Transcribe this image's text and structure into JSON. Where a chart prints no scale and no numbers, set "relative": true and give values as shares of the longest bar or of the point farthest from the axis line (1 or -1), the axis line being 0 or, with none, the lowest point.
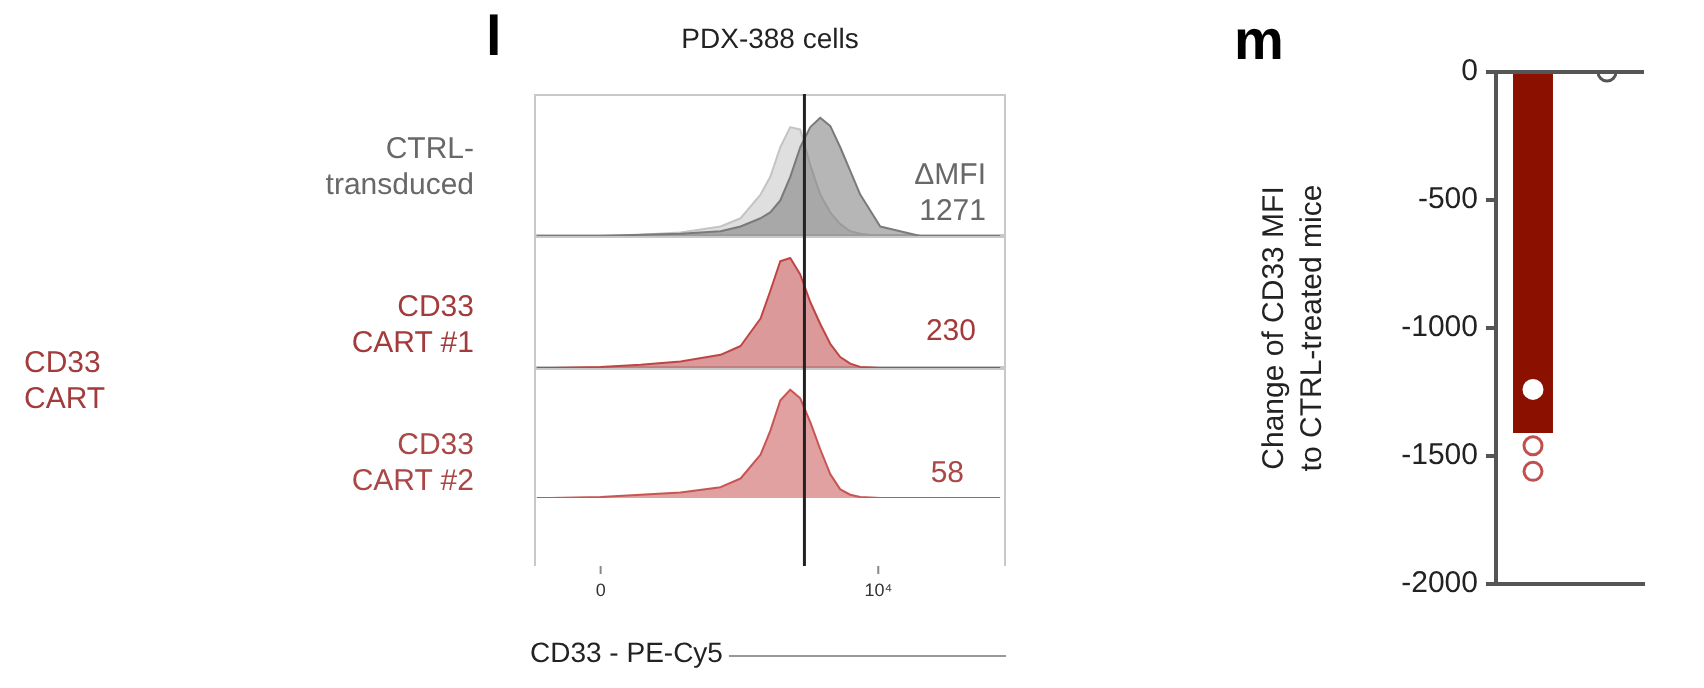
{
  "chart_data": [
    {
      "type": "area",
      "relative": true,
      "title": "PDX-388 cells",
      "ylabel": "CTRL-\ntransduced",
      "annotations": [
        "l",
        "ΔMFI\n1271"
      ],
      "x": [
        -2300,
        -1800,
        0,
        1440,
        2880,
        4320,
        5040,
        5760,
        6110,
        6470,
        6830,
        7190,
        7550,
        7910,
        8270,
        8630,
        8990,
        9350,
        10070,
        11510,
        14390
      ],
      "series": [
        {
          "color": "#c4c4c4",
          "values": [
            0,
            0,
            0,
            0.01,
            0.03,
            0.08,
            0.15,
            0.35,
            0.5,
            0.75,
            0.92,
            0.9,
            0.6,
            0.35,
            0.2,
            0.1,
            0.04,
            0.02,
            0,
            0,
            0
          ]
        },
        {
          "color": "#7a7a7a",
          "values": [
            0,
            0,
            0,
            0.01,
            0.02,
            0.04,
            0.08,
            0.15,
            0.2,
            0.3,
            0.5,
            0.75,
            0.92,
            1,
            0.93,
            0.75,
            0.55,
            0.35,
            0.08,
            0,
            0
          ]
        }
      ],
      "xlim": [
        -2400,
        14600
      ],
      "ref_lines": [
        {
          "axis": "x",
          "value": 7340
        }
      ],
      "tick_labels": false,
      "legend": false
    },
    {
      "type": "area",
      "relative": true,
      "ylabel": "CD33\nCART #1",
      "annotations": [
        "CD33\nCART",
        "230"
      ],
      "x": [
        -2300,
        -1800,
        0,
        1440,
        2880,
        4320,
        5040,
        5760,
        6110,
        6470,
        6830,
        7190,
        7550,
        7910,
        8270,
        8630,
        8990,
        9350,
        10070,
        11510,
        14390
      ],
      "series": [
        {
          "color": "#bf4545",
          "values": [
            0,
            0,
            0.01,
            0.03,
            0.06,
            0.12,
            0.2,
            0.45,
            0.7,
            0.97,
            1,
            0.85,
            0.6,
            0.4,
            0.22,
            0.1,
            0.04,
            0.01,
            0,
            0,
            0
          ]
        }
      ],
      "xlim": [
        -2400,
        14600
      ],
      "ref_lines": [
        {
          "axis": "x",
          "value": 7340
        }
      ],
      "tick_labels": false,
      "legend": false
    },
    {
      "type": "area",
      "relative": true,
      "ylabel": "CD33\nCART #2",
      "xlabel": "CD33 - PE-Cy5",
      "annotations": [
        "58"
      ],
      "x": [
        -2300,
        -1800,
        0,
        1440,
        2880,
        4320,
        5040,
        5760,
        6110,
        6470,
        6830,
        7190,
        7550,
        7910,
        8270,
        8630,
        8990,
        9350,
        10070,
        11510,
        14390
      ],
      "series": [
        {
          "color": "#c85454",
          "values": [
            0,
            0,
            0.01,
            0.03,
            0.05,
            0.1,
            0.18,
            0.4,
            0.62,
            0.9,
            1,
            0.92,
            0.7,
            0.45,
            0.22,
            0.08,
            0.03,
            0.01,
            0,
            0,
            0
          ]
        }
      ],
      "xlim": [
        -2400,
        14600
      ],
      "xticks": [
        0,
        {
          "value": 10000,
          "label": "10⁴"
        }
      ],
      "ref_lines": [
        {
          "axis": "x",
          "value": 7340
        }
      ],
      "tick_labels": "x",
      "legend": false
    },
    {
      "type": "bar",
      "categories": [
        null,
        null
      ],
      "ylabel": "Change of CD33 MFI\nto CTRL-treated mice",
      "annotations": [
        "m"
      ],
      "series": [
        {
          "type": "bar",
          "color": "#8b1000",
          "values": [
            -1410,
            0
          ]
        },
        {
          "type": "scatter",
          "colors": [
            "#ffffff",
            "#555555"
          ],
          "values": [
            -1240,
            0
          ]
        },
        {
          "type": "scatter",
          "color": "#c0504d",
          "values": [
            -1460,
            null
          ]
        },
        {
          "type": "scatter",
          "color": "#c0504d",
          "values": [
            -1560,
            null
          ]
        }
      ],
      "ylim": [
        -2000,
        0
      ],
      "yticks": [
        0,
        -500,
        -1000,
        -1500,
        -2000
      ],
      "ref_lines": [
        {
          "axis": "y",
          "value": 0
        }
      ],
      "marker": "circle",
      "grid": false,
      "legend": false
    }
  ]
}
